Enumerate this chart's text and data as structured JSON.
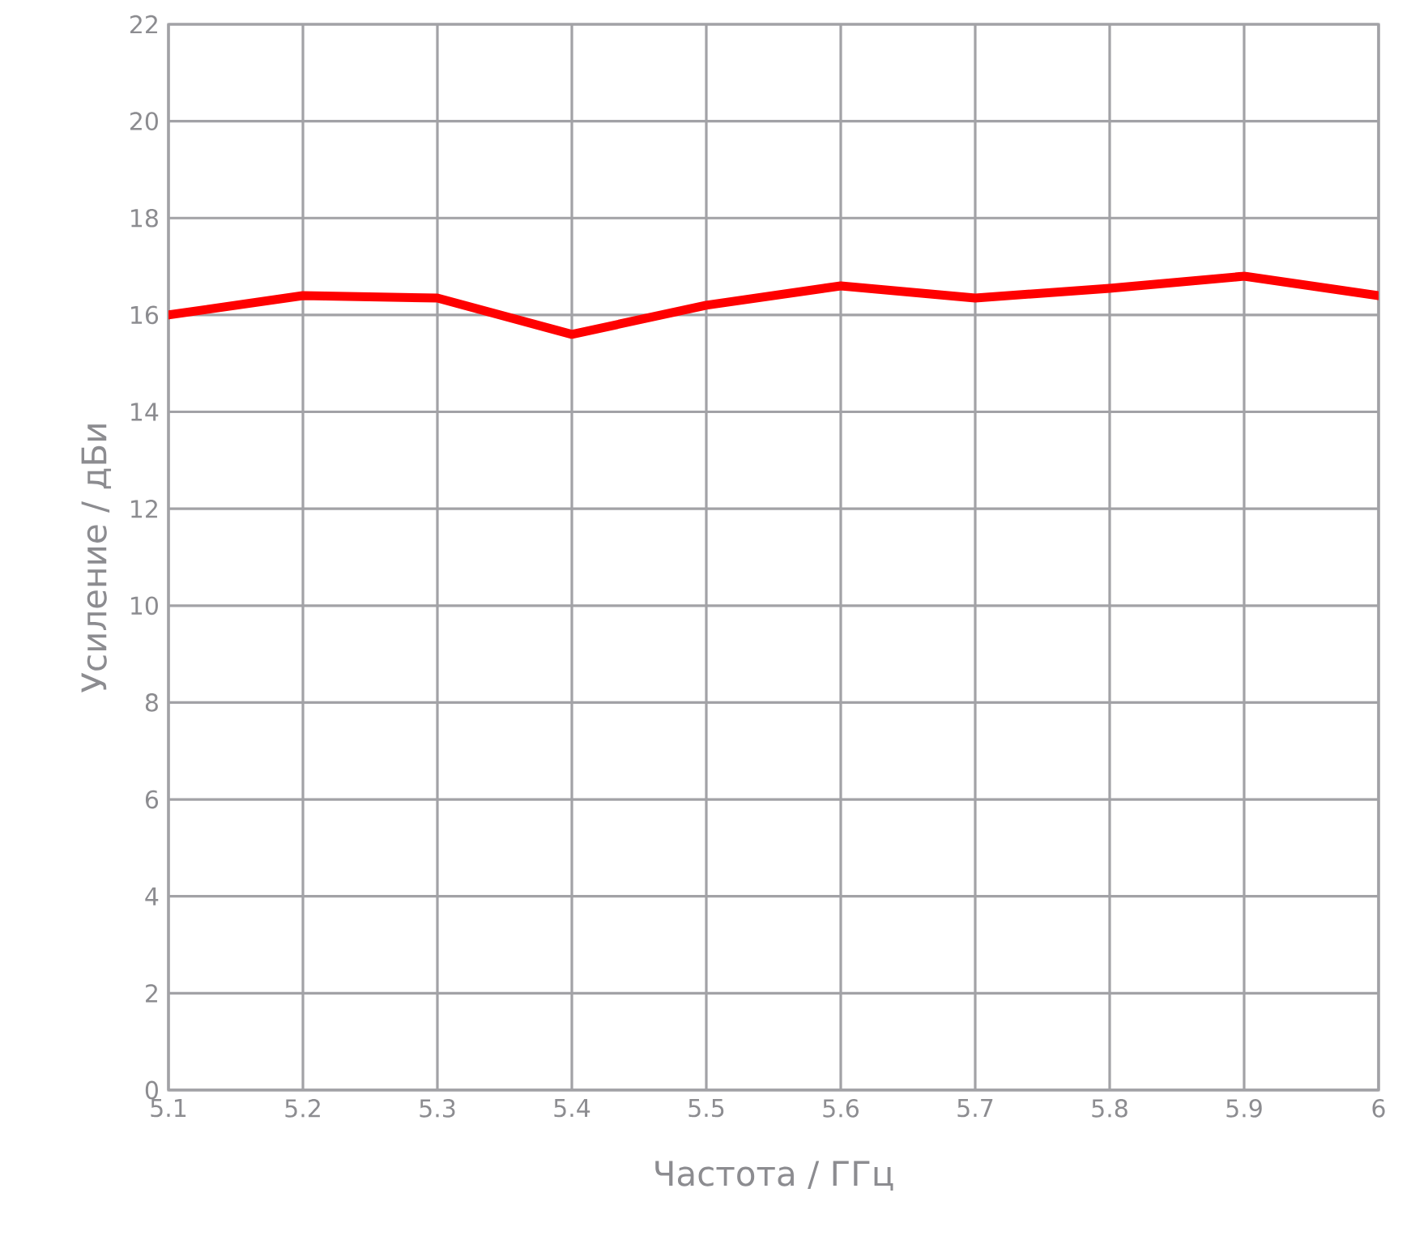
{
  "chart_data": {
    "type": "line",
    "xlabel": "Частота / ГГц",
    "ylabel": "Усиление / дБи",
    "x": [
      5.1,
      5.2,
      5.3,
      5.4,
      5.5,
      5.6,
      5.7,
      5.8,
      5.9,
      6.0
    ],
    "series": [
      {
        "color": "#ff0000",
        "values": [
          16.0,
          16.4,
          16.35,
          15.6,
          16.2,
          16.6,
          16.35,
          16.55,
          16.8,
          16.4
        ]
      }
    ],
    "xlim": [
      5.1,
      6.0
    ],
    "xticks": [
      5.1,
      5.2,
      5.3,
      5.4,
      5.5,
      5.6,
      5.7,
      5.8,
      5.9,
      {
        "value": 6.0,
        "label": "6"
      }
    ],
    "ylim": [
      0,
      22
    ],
    "yticks": [
      0,
      2,
      4,
      6,
      8,
      10,
      12,
      14,
      16,
      18,
      20,
      22
    ],
    "grid": true,
    "marker": "none",
    "line_style": "solid"
  }
}
